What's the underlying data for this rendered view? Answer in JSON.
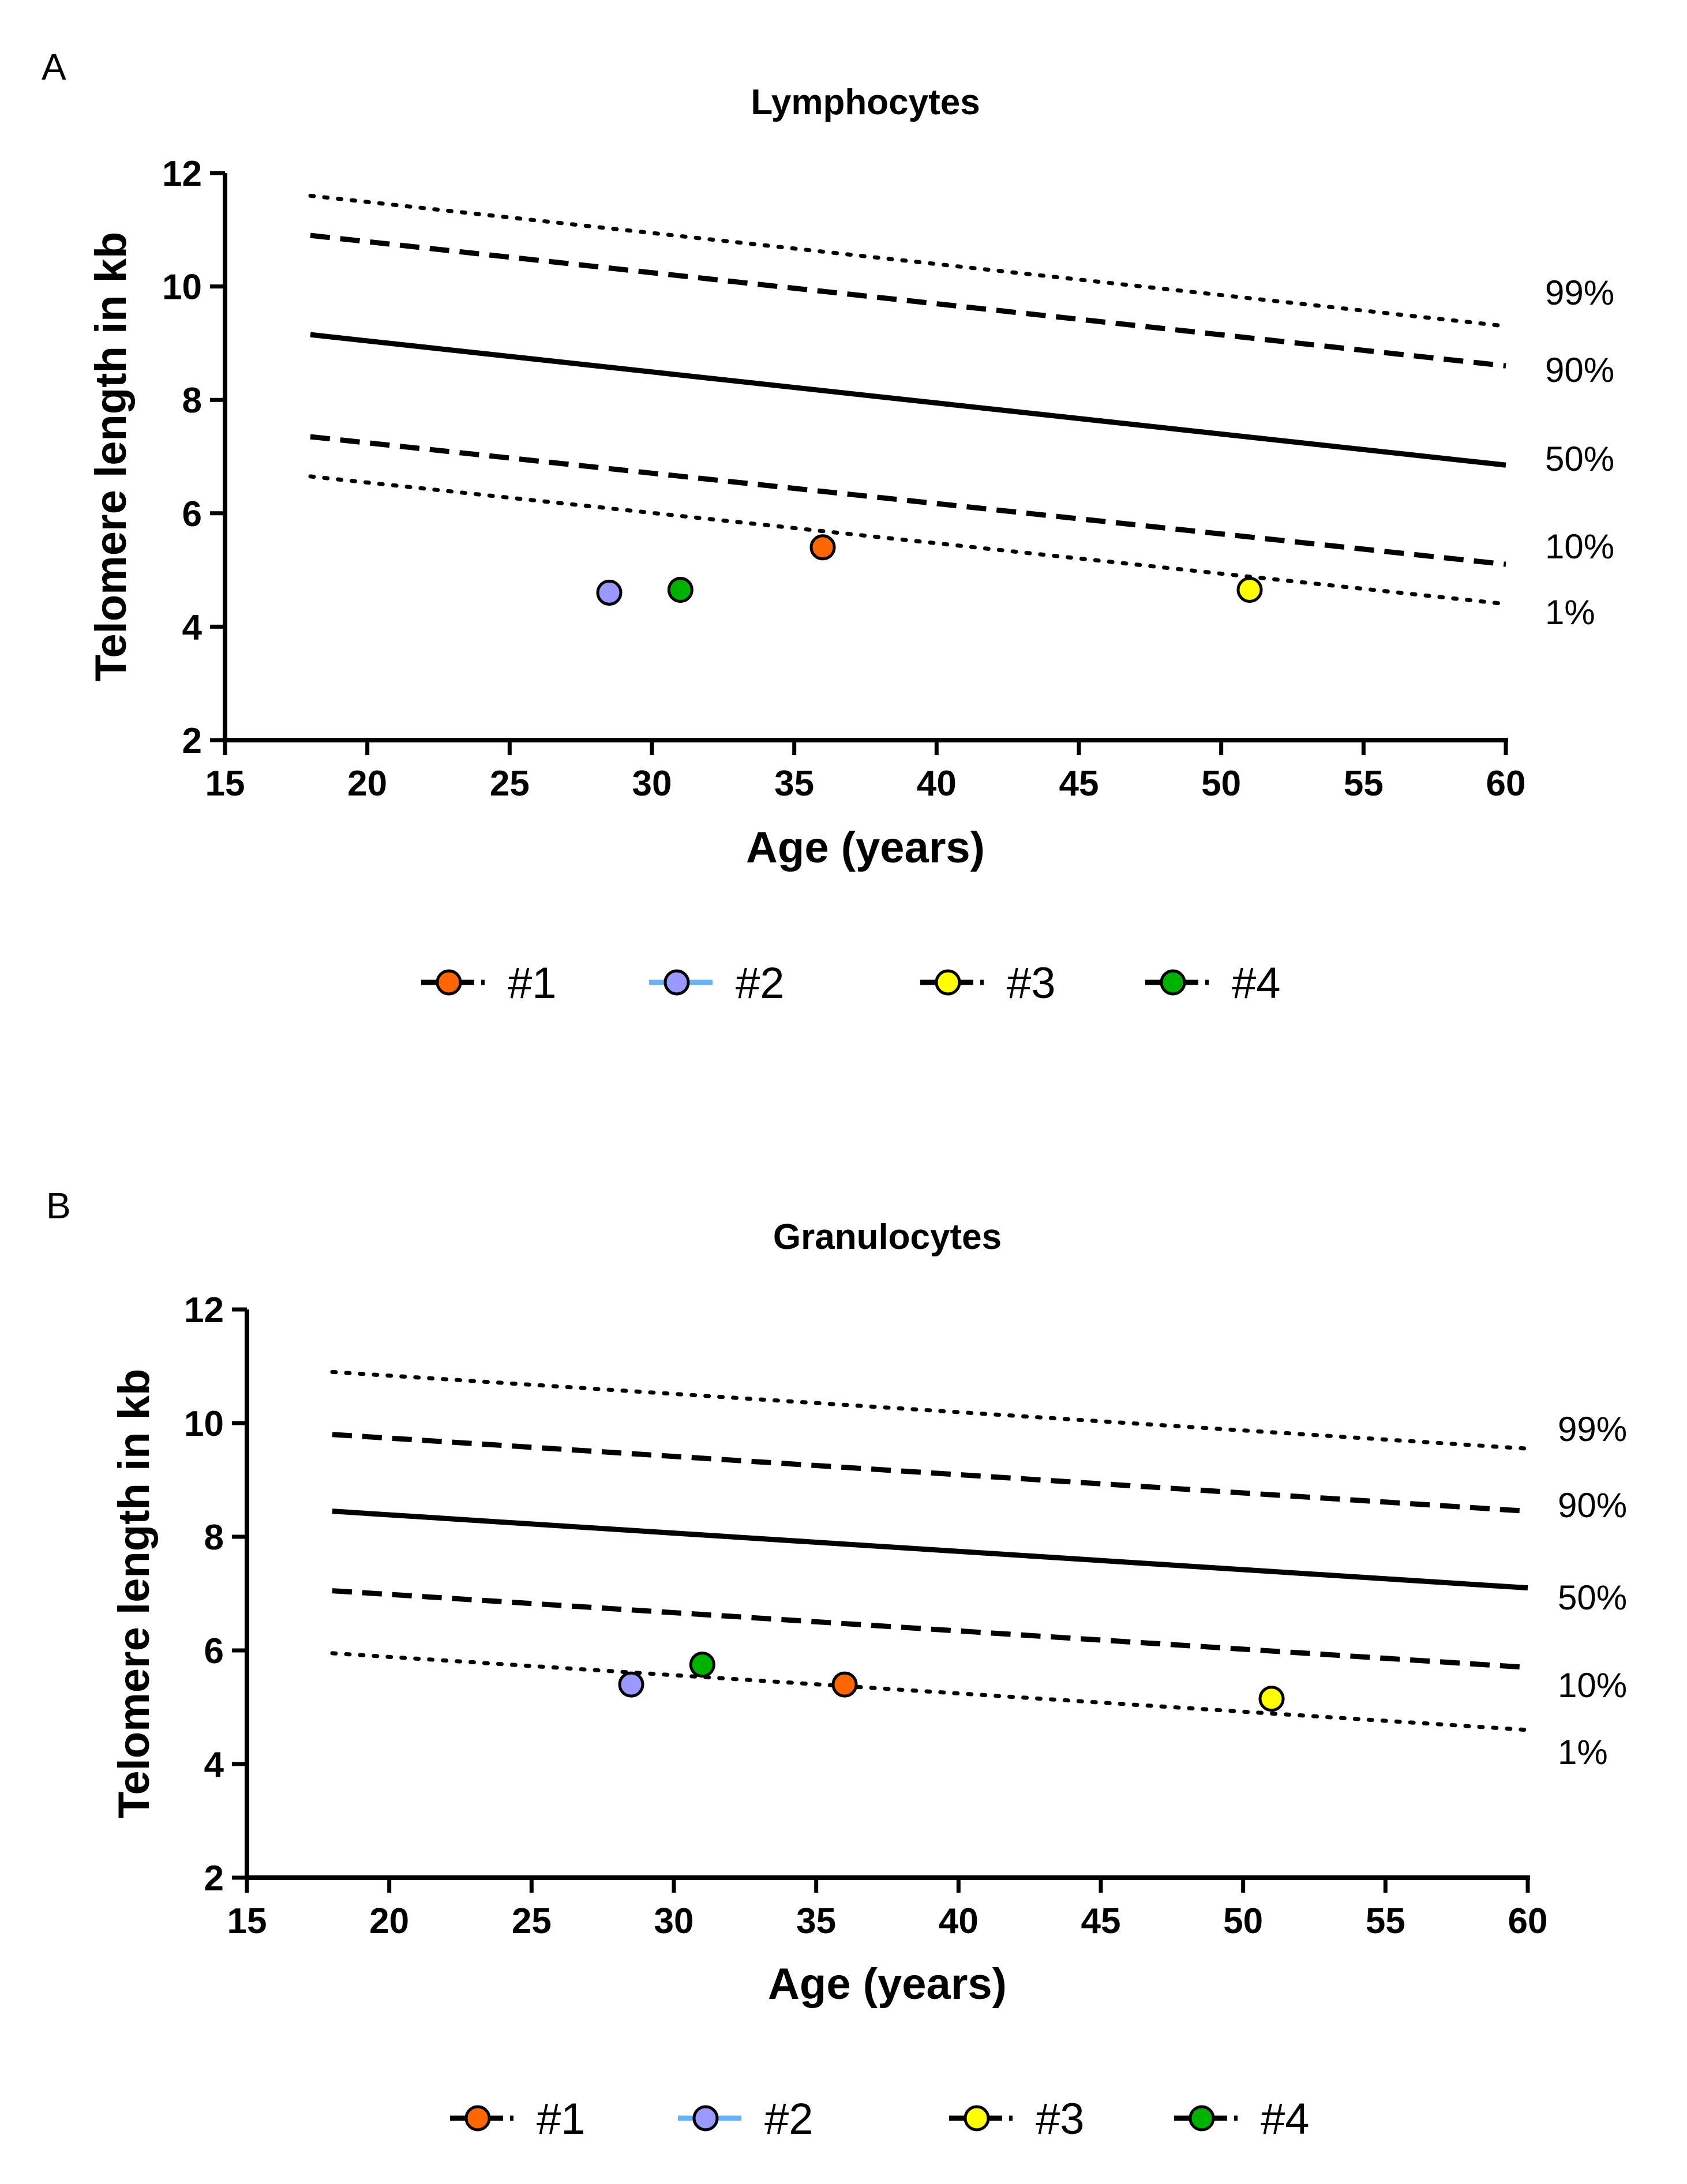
{
  "colors": {
    "axis": "#000000",
    "p1": "#FF6600",
    "p2": "#9999FF",
    "p3": "#FFFF00",
    "p4": "#00B200",
    "legend_line_p2": "#66B2FF"
  },
  "chart_data": [
    {
      "panel": "A",
      "type": "line",
      "title": "Lymphocytes",
      "xlabel": "Age (years)",
      "ylabel": "Telomere length in kb",
      "xlim": [
        15,
        60
      ],
      "ylim": [
        2,
        12
      ],
      "xticks": [
        15,
        20,
        25,
        30,
        35,
        40,
        45,
        50,
        55,
        60
      ],
      "yticks": [
        2,
        4,
        6,
        8,
        10,
        12
      ],
      "percentile_lines": [
        {
          "label": "99%",
          "style": "dotted",
          "x": [
            18,
            60
          ],
          "y": [
            11.6,
            9.3
          ]
        },
        {
          "label": "90%",
          "style": "dashed",
          "x": [
            18,
            60
          ],
          "y": [
            10.9,
            8.6
          ]
        },
        {
          "label": "50%",
          "style": "solid",
          "x": [
            18,
            60
          ],
          "y": [
            9.15,
            6.85
          ]
        },
        {
          "label": "10%",
          "style": "dashed",
          "x": [
            18,
            60
          ],
          "y": [
            7.35,
            5.1
          ]
        },
        {
          "label": "1%",
          "style": "dotted",
          "x": [
            18,
            60
          ],
          "y": [
            6.65,
            4.4
          ]
        }
      ],
      "points": [
        {
          "name": "#1",
          "x": 36,
          "y": 5.4
        },
        {
          "name": "#2",
          "x": 28.5,
          "y": 4.6
        },
        {
          "name": "#3",
          "x": 51,
          "y": 4.65
        },
        {
          "name": "#4",
          "x": 31,
          "y": 4.65
        }
      ],
      "legend": [
        "#1",
        "#2",
        "#3",
        "#4"
      ]
    },
    {
      "panel": "B",
      "type": "line",
      "title": "Granulocytes",
      "xlabel": "Age (years)",
      "ylabel": "Telomere length in kb",
      "xlim": [
        15,
        60
      ],
      "ylim": [
        2,
        12
      ],
      "xticks": [
        15,
        20,
        25,
        30,
        35,
        40,
        45,
        50,
        55,
        60
      ],
      "yticks": [
        2,
        4,
        6,
        8,
        10,
        12
      ],
      "percentile_lines": [
        {
          "label": "99%",
          "style": "dotted",
          "x": [
            18,
            60
          ],
          "y": [
            10.9,
            9.55
          ]
        },
        {
          "label": "90%",
          "style": "dashed",
          "x": [
            18,
            60
          ],
          "y": [
            9.8,
            8.45
          ]
        },
        {
          "label": "50%",
          "style": "solid",
          "x": [
            18,
            60
          ],
          "y": [
            8.45,
            7.1
          ]
        },
        {
          "label": "10%",
          "style": "dashed",
          "x": [
            18,
            60
          ],
          "y": [
            7.05,
            5.7
          ]
        },
        {
          "label": "1%",
          "style": "dotted",
          "x": [
            18,
            60
          ],
          "y": [
            5.95,
            4.6
          ]
        }
      ],
      "points": [
        {
          "name": "#1",
          "x": 36,
          "y": 5.4
        },
        {
          "name": "#2",
          "x": 28.5,
          "y": 5.4
        },
        {
          "name": "#3",
          "x": 51,
          "y": 5.15
        },
        {
          "name": "#4",
          "x": 31,
          "y": 5.75
        }
      ],
      "legend": [
        "#1",
        "#2",
        "#3",
        "#4"
      ]
    }
  ]
}
